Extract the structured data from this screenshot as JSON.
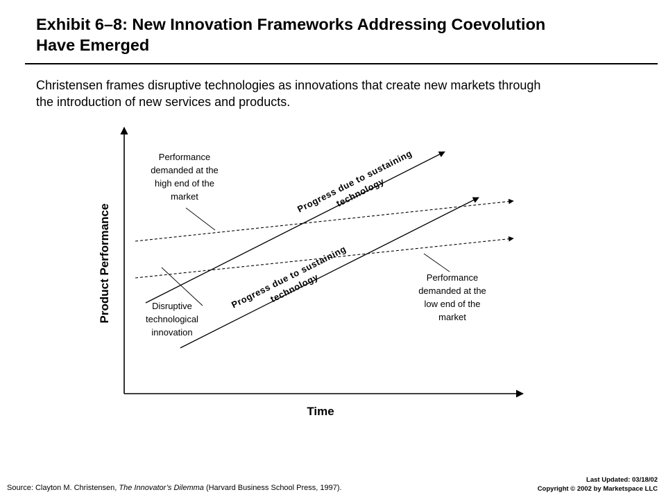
{
  "slide": {
    "title_line1": "Exhibit 6–8: New Innovation Frameworks Addressing Coevolution",
    "title_line2": "Have Emerged",
    "subtitle_line1": "Christensen frames disruptive technologies as innovations that create new markets through",
    "subtitle_line2": "the introduction of new services and products."
  },
  "diagram": {
    "y_axis_label": "Product Performance",
    "x_axis_label": "Time",
    "high_end_label": [
      "Performance",
      "demanded at the",
      "high end of the",
      "market"
    ],
    "low_end_label": [
      "Performance",
      "demanded at the",
      "low end of the",
      "market"
    ],
    "disruptive_label": [
      "Disruptive",
      "technological",
      "innovation"
    ],
    "upper_progress_label": [
      "Progress due to sustaining",
      "technology"
    ],
    "lower_progress_label": [
      "Progress due to sustaining",
      "technology"
    ]
  },
  "footer": {
    "source_prefix": "Source: Clayton M. Christensen, ",
    "source_title": "The Innovator’s Dilemma",
    "source_suffix": " (Harvard Business School Press, 1997).",
    "last_updated": "Last Updated: 03/18/02",
    "copyright": "Copyright © 2002 by Marketspace LLC"
  }
}
